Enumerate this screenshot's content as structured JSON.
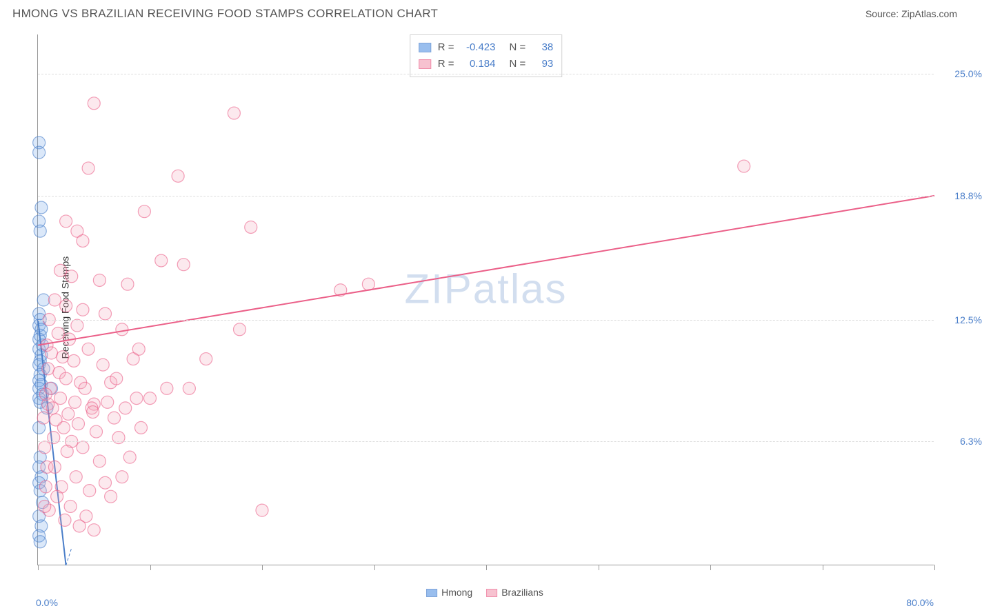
{
  "title": "HMONG VS BRAZILIAN RECEIVING FOOD STAMPS CORRELATION CHART",
  "source": "Source: ZipAtlas.com",
  "watermark_a": "ZIP",
  "watermark_b": "atlas",
  "chart": {
    "type": "scatter",
    "ylabel": "Receiving Food Stamps",
    "xlim": [
      0,
      80
    ],
    "ylim": [
      0,
      27
    ],
    "xmin_label": "0.0%",
    "xmax_label": "80.0%",
    "ytick_labels": [
      "6.3%",
      "12.5%",
      "18.8%",
      "25.0%"
    ],
    "ytick_values": [
      6.3,
      12.5,
      18.8,
      25.0
    ],
    "xtick_values": [
      0,
      10,
      20,
      30,
      40,
      50,
      60,
      70,
      80
    ],
    "grid_color": "#dddddd",
    "axis_color": "#999999",
    "background_color": "#ffffff",
    "label_fontsize": 14,
    "tick_label_color": "#4a7ec9",
    "marker_radius": 9,
    "marker_fill_opacity": 0.25,
    "marker_stroke_width": 1.2,
    "trend_line_width": 2
  },
  "series": [
    {
      "name": "Hmong",
      "color": "#6ea3e8",
      "stroke": "#4a7ec9",
      "R": "-0.423",
      "N": "38",
      "trend": {
        "x1": 0,
        "y1": 12.5,
        "x2": 2.5,
        "y2": 0,
        "dash_ext": true
      },
      "points": [
        [
          0.1,
          21.5
        ],
        [
          0.1,
          21.0
        ],
        [
          0.3,
          18.2
        ],
        [
          0.1,
          17.5
        ],
        [
          0.2,
          17.0
        ],
        [
          0.5,
          13.5
        ],
        [
          0.1,
          12.8
        ],
        [
          0.2,
          12.5
        ],
        [
          0.1,
          12.2
        ],
        [
          0.3,
          12.0
        ],
        [
          0.2,
          11.7
        ],
        [
          0.1,
          11.5
        ],
        [
          0.4,
          11.2
        ],
        [
          0.1,
          11.0
        ],
        [
          0.3,
          10.7
        ],
        [
          0.2,
          10.4
        ],
        [
          0.1,
          10.2
        ],
        [
          0.5,
          10.0
        ],
        [
          0.2,
          9.7
        ],
        [
          0.1,
          9.4
        ],
        [
          0.3,
          9.2
        ],
        [
          0.1,
          9.0
        ],
        [
          0.4,
          8.7
        ],
        [
          0.1,
          8.5
        ],
        [
          0.2,
          8.3
        ],
        [
          0.8,
          8.0
        ],
        [
          0.1,
          7.0
        ],
        [
          1.2,
          9.0
        ],
        [
          0.2,
          5.5
        ],
        [
          0.1,
          5.0
        ],
        [
          0.3,
          4.5
        ],
        [
          0.1,
          4.2
        ],
        [
          0.2,
          3.8
        ],
        [
          0.4,
          3.2
        ],
        [
          0.1,
          2.5
        ],
        [
          0.3,
          2.0
        ],
        [
          0.1,
          1.5
        ],
        [
          0.2,
          1.2
        ]
      ]
    },
    {
      "name": "Brazilians",
      "color": "#f5a9bd",
      "stroke": "#eb5f88",
      "R": "0.184",
      "N": "93",
      "trend": {
        "x1": 0,
        "y1": 11.2,
        "x2": 80,
        "y2": 18.8,
        "dash_ext": false
      },
      "points": [
        [
          5.0,
          23.5
        ],
        [
          17.5,
          23.0
        ],
        [
          63.0,
          20.3
        ],
        [
          4.5,
          20.2
        ],
        [
          12.5,
          19.8
        ],
        [
          9.5,
          18.0
        ],
        [
          2.5,
          17.5
        ],
        [
          3.5,
          17.0
        ],
        [
          19.0,
          17.2
        ],
        [
          4.0,
          16.5
        ],
        [
          11.0,
          15.5
        ],
        [
          13.0,
          15.3
        ],
        [
          2.0,
          15.0
        ],
        [
          3.0,
          14.7
        ],
        [
          5.5,
          14.5
        ],
        [
          8.0,
          14.3
        ],
        [
          27.0,
          14.0
        ],
        [
          29.5,
          14.3
        ],
        [
          1.5,
          13.5
        ],
        [
          2.5,
          13.2
        ],
        [
          4.0,
          13.0
        ],
        [
          6.0,
          12.8
        ],
        [
          1.0,
          12.5
        ],
        [
          3.5,
          12.2
        ],
        [
          7.5,
          12.0
        ],
        [
          18.0,
          12.0
        ],
        [
          1.8,
          11.8
        ],
        [
          2.8,
          11.5
        ],
        [
          0.8,
          11.2
        ],
        [
          4.5,
          11.0
        ],
        [
          9.0,
          11.0
        ],
        [
          1.2,
          10.8
        ],
        [
          2.2,
          10.6
        ],
        [
          3.2,
          10.4
        ],
        [
          5.8,
          10.2
        ],
        [
          0.9,
          10.0
        ],
        [
          1.9,
          9.8
        ],
        [
          8.5,
          10.5
        ],
        [
          15.0,
          10.5
        ],
        [
          2.5,
          9.5
        ],
        [
          3.8,
          9.3
        ],
        [
          6.5,
          9.3
        ],
        [
          1.1,
          9.0
        ],
        [
          4.2,
          9.0
        ],
        [
          7.0,
          9.5
        ],
        [
          11.5,
          9.0
        ],
        [
          13.5,
          9.0
        ],
        [
          0.7,
          8.7
        ],
        [
          2.0,
          8.5
        ],
        [
          3.3,
          8.3
        ],
        [
          5.0,
          8.2
        ],
        [
          8.8,
          8.5
        ],
        [
          1.3,
          8.0
        ],
        [
          4.8,
          8.0
        ],
        [
          6.2,
          8.3
        ],
        [
          10.0,
          8.5
        ],
        [
          2.7,
          7.7
        ],
        [
          7.8,
          8.0
        ],
        [
          1.6,
          7.4
        ],
        [
          3.6,
          7.2
        ],
        [
          4.9,
          7.8
        ],
        [
          6.8,
          7.5
        ],
        [
          2.3,
          7.0
        ],
        [
          5.2,
          6.8
        ],
        [
          9.2,
          7.0
        ],
        [
          1.4,
          6.5
        ],
        [
          3.0,
          6.3
        ],
        [
          7.2,
          6.5
        ],
        [
          4.0,
          6.0
        ],
        [
          8.2,
          5.5
        ],
        [
          2.6,
          5.8
        ],
        [
          5.5,
          5.3
        ],
        [
          6.0,
          4.2
        ],
        [
          3.4,
          4.5
        ],
        [
          7.5,
          4.5
        ],
        [
          2.1,
          4.0
        ],
        [
          4.6,
          3.8
        ],
        [
          1.7,
          3.5
        ],
        [
          6.5,
          3.5
        ],
        [
          5.0,
          1.8
        ],
        [
          3.7,
          2.0
        ],
        [
          20.0,
          2.8
        ],
        [
          2.4,
          2.3
        ],
        [
          1.0,
          2.8
        ],
        [
          0.6,
          3.0
        ],
        [
          0.5,
          7.5
        ],
        [
          0.6,
          6.0
        ],
        [
          0.8,
          5.0
        ],
        [
          0.7,
          4.0
        ],
        [
          0.9,
          8.2
        ],
        [
          1.5,
          5.0
        ],
        [
          2.9,
          3.0
        ],
        [
          4.3,
          2.5
        ]
      ]
    }
  ],
  "legend": {
    "r_label": "R =",
    "n_label": "N ="
  }
}
